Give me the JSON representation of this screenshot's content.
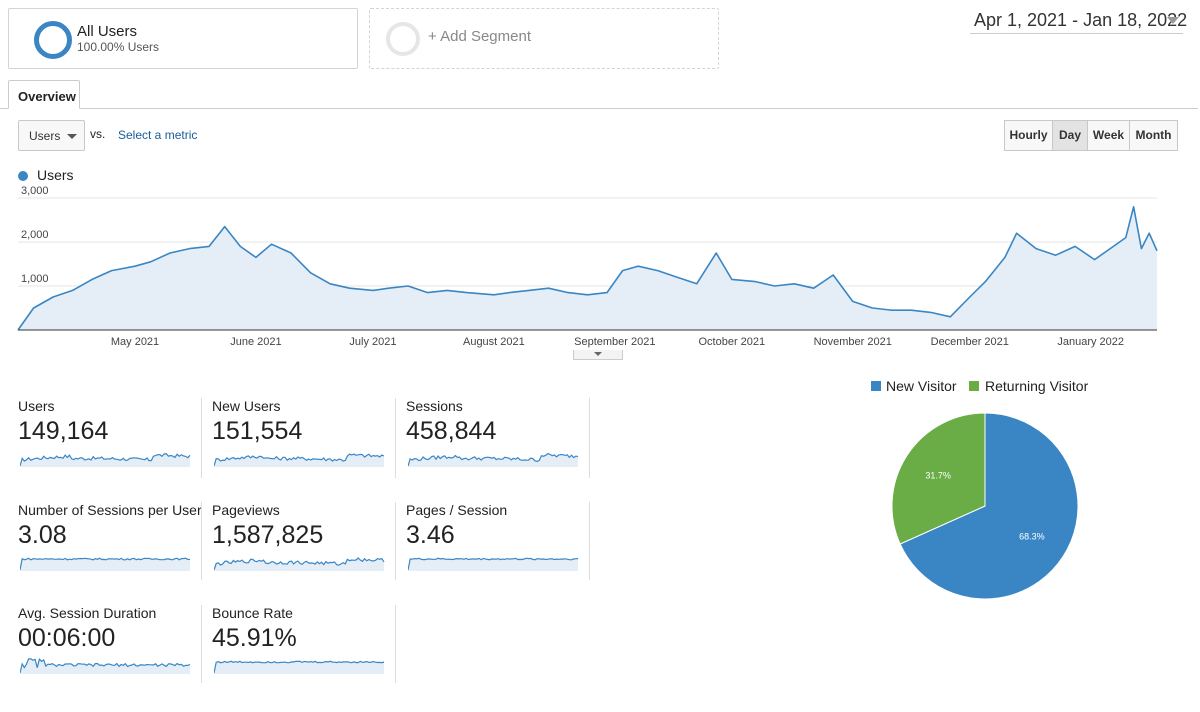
{
  "segments": {
    "all_users": {
      "title": "All Users",
      "subtitle": "100.00% Users"
    },
    "add_segment": {
      "label": "+ Add Segment"
    }
  },
  "date_range": "Apr 1, 2021 - Jan 18, 2022",
  "tabs": [
    {
      "label": "Overview"
    }
  ],
  "toolbar": {
    "metric_select": "Users",
    "vs_label": "vs.",
    "select_metric_link": "Select a metric",
    "granularity": [
      "Hourly",
      "Day",
      "Week",
      "Month"
    ],
    "granularity_selected": "Day"
  },
  "colors": {
    "accent": "#3a86c4",
    "new_visitor": "#3a86c4",
    "returning_visitor": "#6aac46"
  },
  "chart_data": [
    {
      "type": "line",
      "series": [
        {
          "name": "Users"
        }
      ],
      "ylim": [
        0,
        3000
      ],
      "yticks": [
        "3,000",
        "2,000",
        "1,000"
      ],
      "x_start": "2021-04-01",
      "x_end": "2022-01-18",
      "x_tick_labels": [
        "May 2021",
        "June 2021",
        "July 2021",
        "August 2021",
        "September 2021",
        "October 2021",
        "November 2021",
        "December 2021",
        "January 2022"
      ],
      "points": [
        [
          "2021-04-01",
          0
        ],
        [
          "2021-04-05",
          500
        ],
        [
          "2021-04-10",
          750
        ],
        [
          "2021-04-15",
          900
        ],
        [
          "2021-04-20",
          1150
        ],
        [
          "2021-04-25",
          1350
        ],
        [
          "2021-05-01",
          1450
        ],
        [
          "2021-05-05",
          1550
        ],
        [
          "2021-05-10",
          1750
        ],
        [
          "2021-05-15",
          1850
        ],
        [
          "2021-05-20",
          1900
        ],
        [
          "2021-05-24",
          2350
        ],
        [
          "2021-05-28",
          1900
        ],
        [
          "2021-06-01",
          1650
        ],
        [
          "2021-06-05",
          1950
        ],
        [
          "2021-06-10",
          1750
        ],
        [
          "2021-06-15",
          1300
        ],
        [
          "2021-06-20",
          1050
        ],
        [
          "2021-06-25",
          950
        ],
        [
          "2021-07-01",
          900
        ],
        [
          "2021-07-05",
          950
        ],
        [
          "2021-07-10",
          1000
        ],
        [
          "2021-07-15",
          850
        ],
        [
          "2021-07-20",
          900
        ],
        [
          "2021-07-25",
          850
        ],
        [
          "2021-08-01",
          800
        ],
        [
          "2021-08-05",
          850
        ],
        [
          "2021-08-10",
          900
        ],
        [
          "2021-08-15",
          950
        ],
        [
          "2021-08-20",
          850
        ],
        [
          "2021-08-25",
          800
        ],
        [
          "2021-08-30",
          850
        ],
        [
          "2021-09-03",
          1350
        ],
        [
          "2021-09-07",
          1450
        ],
        [
          "2021-09-12",
          1350
        ],
        [
          "2021-09-17",
          1200
        ],
        [
          "2021-09-22",
          1050
        ],
        [
          "2021-09-27",
          1750
        ],
        [
          "2021-10-01",
          1150
        ],
        [
          "2021-10-07",
          1100
        ],
        [
          "2021-10-12",
          1000
        ],
        [
          "2021-10-17",
          1050
        ],
        [
          "2021-10-22",
          950
        ],
        [
          "2021-10-27",
          1250
        ],
        [
          "2021-11-01",
          650
        ],
        [
          "2021-11-06",
          500
        ],
        [
          "2021-11-11",
          450
        ],
        [
          "2021-11-16",
          450
        ],
        [
          "2021-11-21",
          400
        ],
        [
          "2021-11-26",
          300
        ],
        [
          "2021-12-01",
          750
        ],
        [
          "2021-12-05",
          1100
        ],
        [
          "2021-12-10",
          1650
        ],
        [
          "2021-12-13",
          2200
        ],
        [
          "2021-12-18",
          1850
        ],
        [
          "2021-12-23",
          1700
        ],
        [
          "2021-12-28",
          1900
        ],
        [
          "2022-01-02",
          1600
        ],
        [
          "2022-01-06",
          1850
        ],
        [
          "2022-01-10",
          2100
        ],
        [
          "2022-01-12",
          2800
        ],
        [
          "2022-01-14",
          1850
        ],
        [
          "2022-01-16",
          2200
        ],
        [
          "2022-01-18",
          1800
        ]
      ]
    },
    {
      "type": "pie",
      "legend": [
        "New Visitor",
        "Returning Visitor"
      ],
      "slices": [
        {
          "name": "New Visitor",
          "value": 68.3,
          "label": "68.3%"
        },
        {
          "name": "Returning Visitor",
          "value": 31.7,
          "label": "31.7%"
        }
      ],
      "legend_position": "top"
    }
  ],
  "metrics": [
    {
      "label": "Users",
      "value": "149,164",
      "spark": "growth"
    },
    {
      "label": "New Users",
      "value": "151,554",
      "spark": "growth"
    },
    {
      "label": "Sessions",
      "value": "458,844",
      "spark": "growth"
    },
    {
      "label": "Number of Sessions per User",
      "value": "3.08",
      "spark": "flat"
    },
    {
      "label": "Pageviews",
      "value": "1,587,825",
      "spark": "growth"
    },
    {
      "label": "Pages / Session",
      "value": "3.46",
      "spark": "flat"
    },
    {
      "label": "Avg. Session Duration",
      "value": "00:06:00",
      "spark": "spiky"
    },
    {
      "label": "Bounce Rate",
      "value": "45.91%",
      "spark": "flat"
    }
  ]
}
